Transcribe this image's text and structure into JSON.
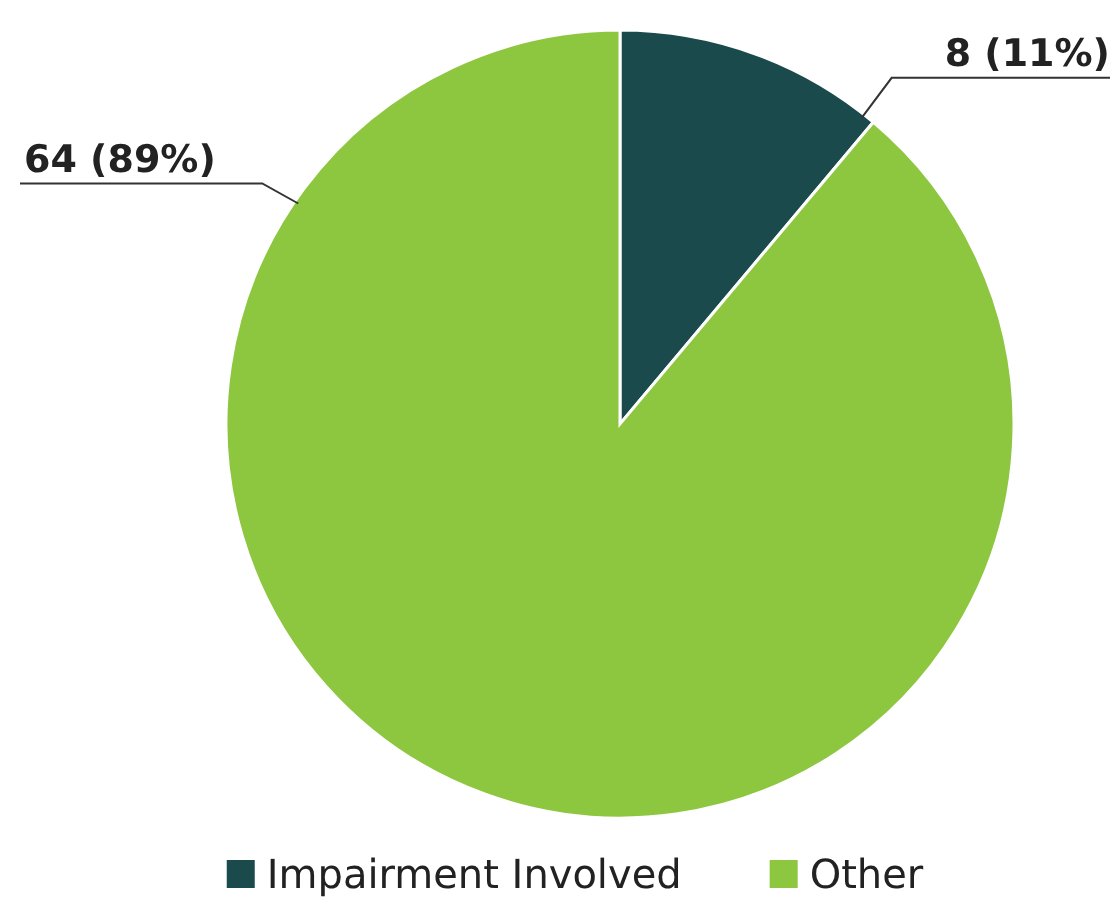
{
  "chart_data": {
    "type": "pie",
    "categories": [
      "Impairment Involved",
      "Other"
    ],
    "values": [
      8,
      64
    ],
    "colors": [
      "#1b4a4c",
      "#8dc63f"
    ],
    "value_labels": [
      "8 (11%)",
      "64 (89%)"
    ],
    "legend": "bottom"
  }
}
